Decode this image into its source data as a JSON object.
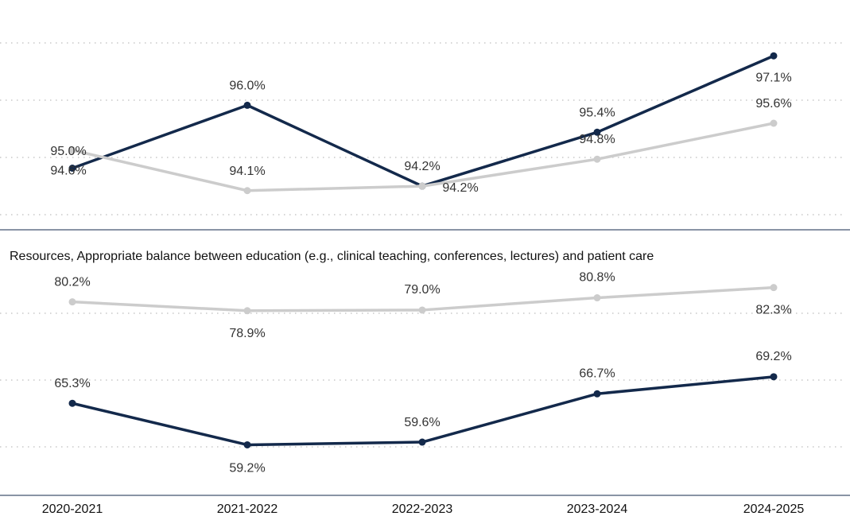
{
  "colors": {
    "dark_series": "#13294b",
    "light_series": "#cccccc",
    "divider": "#13294b",
    "grid": "#c8c8c8",
    "label_text": "#333333"
  },
  "chart_data": [
    {
      "type": "line",
      "title": "",
      "x": [
        "2020-2021",
        "2021-2022",
        "2022-2023",
        "2023-2024",
        "2024-2025"
      ],
      "ylim": [
        93.6,
        97.6
      ],
      "grid": "horizontal-dotted",
      "series": [
        {
          "color": "#13294b",
          "values": [
            94.6,
            96.0,
            94.2,
            95.4,
            97.1
          ],
          "labels": [
            "94.6%",
            "96.0%",
            "94.2%",
            "95.4%",
            "97.1%"
          ]
        },
        {
          "color": "#cccccc",
          "values": [
            95.0,
            94.1,
            94.2,
            94.8,
            95.6
          ],
          "labels": [
            "95.0%",
            "94.1%",
            "94.2%",
            "94.8%",
            "95.6%"
          ]
        }
      ]
    },
    {
      "type": "line",
      "title": "Resources, Appropriate balance between education (e.g., clinical teaching, conferences, lectures) and patient care",
      "x": [
        "2020-2021",
        "2021-2022",
        "2022-2023",
        "2023-2024",
        "2024-2025"
      ],
      "ylim": [
        54,
        86
      ],
      "grid": "horizontal-dotted",
      "series": [
        {
          "color": "#cccccc",
          "values": [
            80.2,
            78.9,
            79.0,
            80.8,
            82.3
          ],
          "labels": [
            "80.2%",
            "78.9%",
            "79.0%",
            "80.8%",
            "82.3%"
          ]
        },
        {
          "color": "#13294b",
          "values": [
            65.3,
            59.2,
            59.6,
            66.7,
            69.2
          ],
          "labels": [
            "65.3%",
            "59.2%",
            "59.6%",
            "66.7%",
            "69.2%"
          ]
        }
      ]
    }
  ]
}
